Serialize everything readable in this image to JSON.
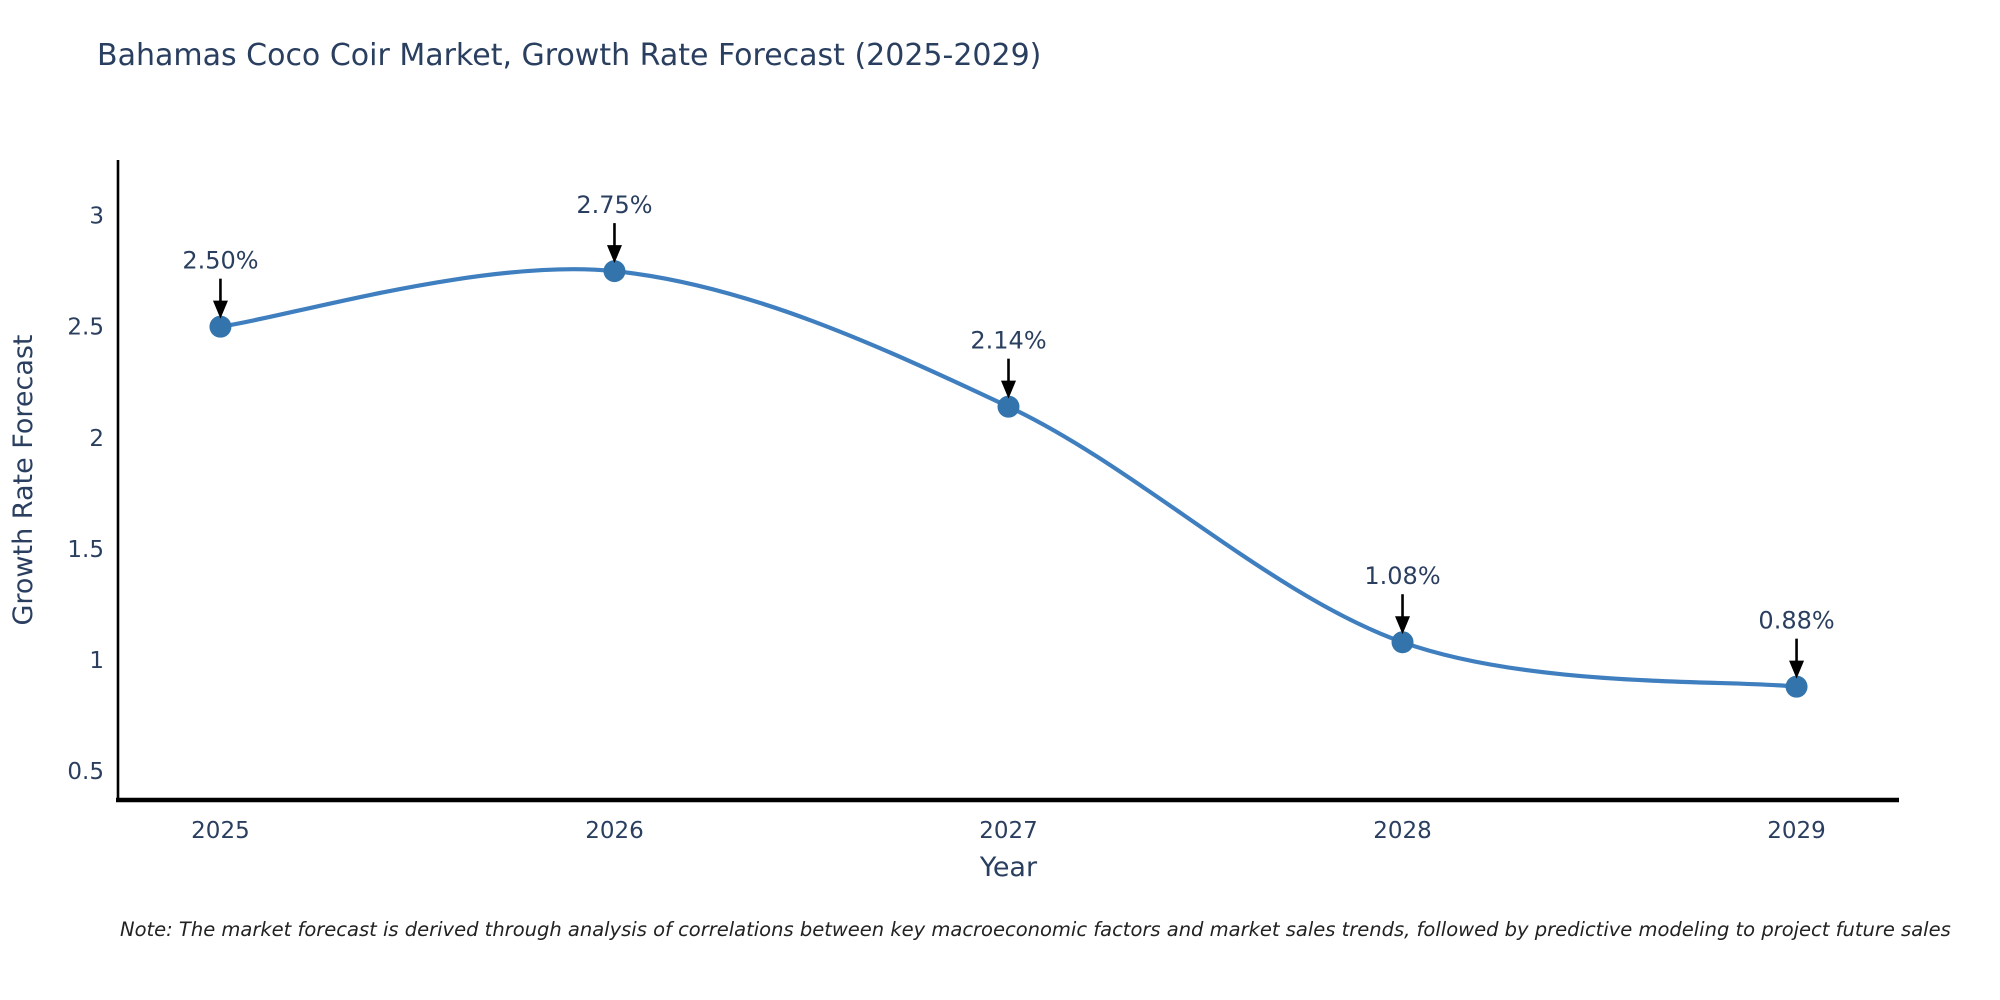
{
  "title": "Bahamas Coco Coir Market, Growth Rate Forecast (2025-2029)",
  "note": "Note: The market forecast is derived through analysis of correlations between key macroeconomic factors and market sales trends, followed by predictive modeling to project future sales",
  "chart_data": {
    "type": "line",
    "title": "Bahamas Coco Coir Market, Growth Rate Forecast (2025-2029)",
    "xlabel": "Year",
    "ylabel": "Growth Rate Forecast",
    "x": [
      2025,
      2026,
      2027,
      2028,
      2029
    ],
    "x_tick_labels": [
      "2025",
      "2026",
      "2027",
      "2028",
      "2029"
    ],
    "values": [
      2.5,
      2.75,
      2.14,
      1.08,
      0.88
    ],
    "point_labels": [
      "2.50%",
      "2.75%",
      "2.14%",
      "1.08%",
      "0.88%"
    ],
    "y_ticks": [
      0.5,
      1,
      1.5,
      2,
      2.5,
      3
    ],
    "y_tick_labels": [
      "0.5",
      "1",
      "1.5",
      "2",
      "2.5",
      "3"
    ],
    "xlim": [
      2024.74,
      2029.26
    ],
    "ylim": [
      0.37,
      3.25
    ],
    "line_shape": "spline",
    "grid": false,
    "legend": "none",
    "colors": {
      "line": "#3f7fbf",
      "marker": "#3474ad",
      "axis": "#000000",
      "chart_text": "#2a3f5f",
      "annotation_text": "#2a3f5f",
      "annotation_arrow": "#000000",
      "background": "#ffffff"
    }
  }
}
